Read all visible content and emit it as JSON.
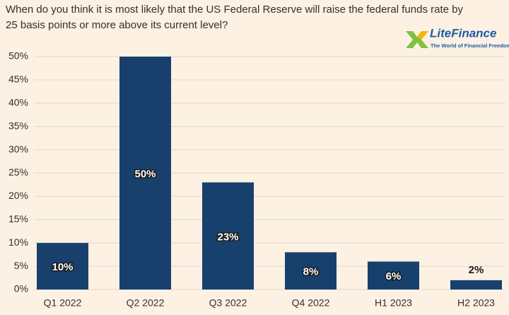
{
  "chart_data": {
    "type": "bar",
    "title": "When do you think it is most likely that the US Federal Reserve will raise the federal funds rate by 25 basis points or more above its current level?",
    "categories": [
      "Q1 2022",
      "Q2 2022",
      "Q3 2022",
      "Q4 2022",
      "H1 2023",
      "H2 2023"
    ],
    "values": [
      10,
      50,
      23,
      8,
      6,
      2
    ],
    "value_labels": [
      "10%",
      "50%",
      "23%",
      "8%",
      "6%",
      "2%"
    ],
    "color": "#17406d",
    "ylim": [
      0,
      50
    ],
    "yticks": [
      {
        "value": 0,
        "label": "0%"
      },
      {
        "value": 5,
        "label": "5%"
      },
      {
        "value": 10,
        "label": "10%"
      },
      {
        "value": 15,
        "label": "15%"
      },
      {
        "value": 20,
        "label": "20%"
      },
      {
        "value": 25,
        "label": "25%"
      },
      {
        "value": 30,
        "label": "30%"
      },
      {
        "value": 35,
        "label": "35%"
      },
      {
        "value": 40,
        "label": "40%"
      },
      {
        "value": 45,
        "label": "45%"
      },
      {
        "value": 50,
        "label": "50%"
      }
    ],
    "grid": true
  },
  "logo": {
    "name": "LiteFinance",
    "tagline": "The World of Financial Freedom"
  }
}
